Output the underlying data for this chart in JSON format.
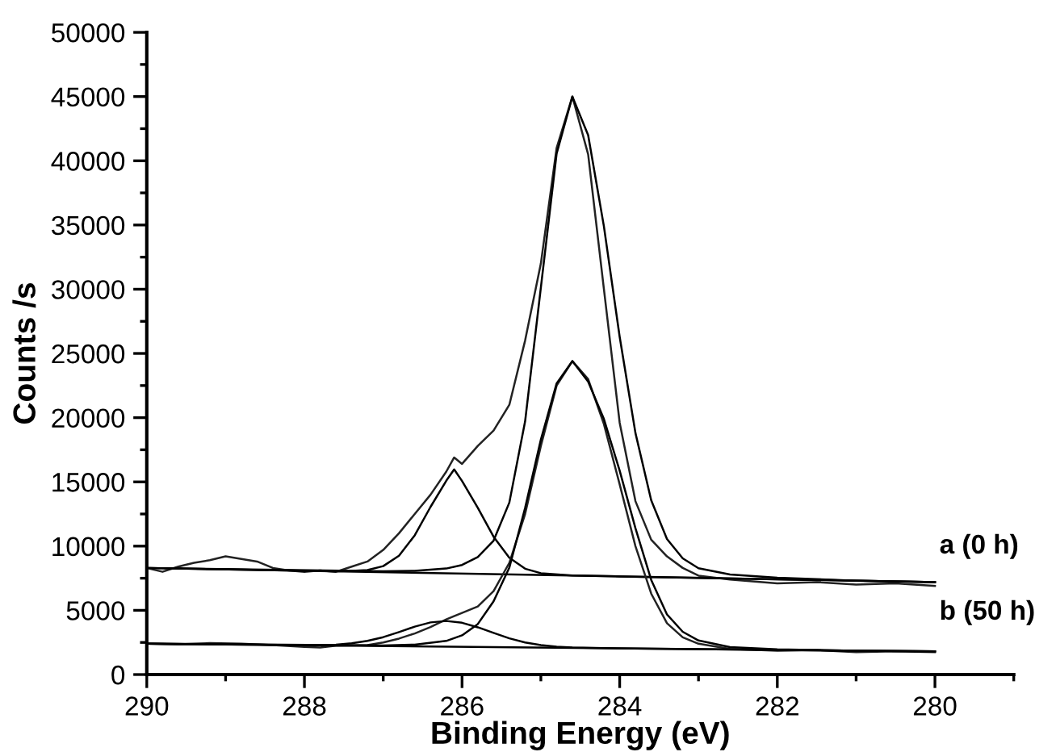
{
  "chart_data": {
    "type": "line",
    "xlabel": "Binding Energy (eV)",
    "ylabel": "Counts /s",
    "xlim": [
      290,
      279
    ],
    "ylim": [
      0,
      50000
    ],
    "xticks": [
      290,
      {
        "value": 289,
        "label": null
      },
      288,
      {
        "value": 287,
        "label": null
      },
      286,
      {
        "value": 285,
        "label": null
      },
      284,
      {
        "value": 283,
        "label": null
      },
      282,
      {
        "value": 281,
        "label": null
      },
      280,
      {
        "value": 279,
        "label": null
      }
    ],
    "yticks": [
      0,
      {
        "value": 2500,
        "label": null
      },
      5000,
      {
        "value": 7500,
        "label": null
      },
      10000,
      {
        "value": 12500,
        "label": null
      },
      15000,
      {
        "value": 17500,
        "label": null
      },
      20000,
      {
        "value": 22500,
        "label": null
      },
      25000,
      {
        "value": 27500,
        "label": null
      },
      30000,
      {
        "value": 32500,
        "label": null
      },
      35000,
      {
        "value": 37500,
        "label": null
      },
      40000,
      {
        "value": 42500,
        "label": null
      },
      45000,
      {
        "value": 47500,
        "label": null
      },
      50000
    ],
    "grid": false,
    "legend": false,
    "marker": "none",
    "line_style": "solid",
    "series": [
      {
        "name": "a (0 h)",
        "color": "#222222",
        "x": [
          290,
          289.8,
          289.6,
          289.4,
          289.2,
          289.0,
          288.8,
          288.6,
          288.4,
          288.2,
          288.0,
          287.8,
          287.6,
          287.4,
          287.2,
          287.0,
          286.8,
          286.6,
          286.4,
          286.2,
          286.1,
          286.0,
          285.8,
          285.6,
          285.4,
          285.2,
          285.0,
          284.8,
          284.6,
          284.4,
          284.2,
          284.0,
          283.8,
          283.6,
          283.4,
          283.2,
          283.0,
          282.6,
          282.0,
          281.5,
          281.0,
          280.5,
          280.0
        ],
        "values": [
          8300,
          8000,
          8400,
          8700,
          8900,
          9200,
          9000,
          8800,
          8300,
          8100,
          8000,
          8100,
          8000,
          8400,
          8800,
          9700,
          11000,
          12500,
          14000,
          15800,
          16900,
          16400,
          17800,
          19000,
          21000,
          26000,
          32000,
          41000,
          45000,
          40500,
          30000,
          19600,
          13500,
          10500,
          9200,
          8300,
          7700,
          7400,
          7100,
          7200,
          7000,
          7100,
          6900
        ]
      },
      {
        "color": "#000000",
        "x": [
          290,
          287.0,
          286.6,
          286.2,
          286.0,
          285.8,
          285.6,
          285.4,
          285.2,
          285.0,
          284.8,
          284.6,
          284.4,
          284.2,
          284.0,
          283.8,
          283.6,
          283.4,
          283.2,
          283.0,
          282.6,
          282.0,
          281.0,
          280.0
        ],
        "values": [
          8300,
          8045,
          8075,
          8255,
          8531,
          9144,
          10427,
          13389,
          19708,
          30130,
          40552,
          45000,
          42000,
          34891,
          26290,
          18808,
          13564,
          10558,
          9044,
          8276,
          7784,
          7532,
          7310,
          7200
        ]
      },
      {
        "color": "#000000",
        "x": [
          290,
          287.6,
          287.4,
          287.2,
          287.0,
          286.8,
          286.6,
          286.4,
          286.2,
          286.1,
          286.0,
          285.8,
          285.6,
          285.4,
          285.2,
          285.0,
          284.6,
          284.0,
          283.0,
          282.0,
          281.0,
          280.0
        ],
        "values": [
          8300,
          8040,
          8080,
          8130,
          8440,
          9250,
          10840,
          13050,
          15090,
          15970,
          15070,
          12980,
          10730,
          9090,
          8240,
          7890,
          7716,
          7640,
          7530,
          7420,
          7310,
          7200
        ]
      },
      {
        "color": "#000000",
        "x": [
          290,
          280
        ],
        "values": [
          8300,
          7200
        ]
      },
      {
        "name": "b (50 h)",
        "color": "#222222",
        "x": [
          290,
          289.6,
          289.2,
          288.8,
          288.4,
          288.0,
          287.8,
          287.6,
          287.2,
          287.0,
          286.8,
          286.6,
          286.4,
          286.2,
          286.0,
          285.8,
          285.6,
          285.4,
          285.2,
          285.0,
          284.8,
          284.6,
          284.4,
          284.2,
          284.0,
          283.8,
          283.6,
          283.4,
          283.2,
          283.0,
          282.6,
          282.0,
          281.5,
          281.0,
          280.5,
          280.0
        ],
        "values": [
          2400,
          2350,
          2450,
          2400,
          2300,
          2150,
          2100,
          2250,
          2300,
          2500,
          2800,
          3200,
          3700,
          4300,
          4800,
          5300,
          6500,
          8700,
          12500,
          17800,
          22500,
          24400,
          23000,
          19500,
          14800,
          10000,
          6300,
          4000,
          2900,
          2400,
          2000,
          1850,
          1900,
          1750,
          1800,
          1750
        ]
      },
      {
        "color": "#000000",
        "x": [
          290,
          287.0,
          286.6,
          286.2,
          286.0,
          285.8,
          285.6,
          285.4,
          285.2,
          285.0,
          284.8,
          284.6,
          284.4,
          284.2,
          284.0,
          283.8,
          283.6,
          283.4,
          283.2,
          283.0,
          282.6,
          282.0,
          281.0,
          280.0
        ],
        "values": [
          2400,
          2265,
          2330,
          2618,
          3052,
          3932,
          5704,
          8323,
          12972,
          18290,
          22668,
          24400,
          22803,
          19892,
          15866,
          11394,
          7368,
          4680,
          3330,
          2649,
          2134,
          1965,
          1860,
          1800
        ]
      },
      {
        "color": "#000000",
        "x": [
          290,
          288.0,
          287.8,
          287.6,
          287.4,
          287.2,
          287.0,
          286.8,
          286.6,
          286.4,
          286.2,
          286.0,
          285.8,
          285.6,
          285.4,
          285.2,
          285.0,
          284.8,
          284.6,
          284.2,
          283.6,
          282.0,
          280.0
        ],
        "values": [
          2400,
          2290,
          2300,
          2330,
          2430,
          2620,
          2910,
          3310,
          3730,
          4060,
          4170,
          4030,
          3680,
          3240,
          2820,
          2500,
          2290,
          2170,
          2110,
          2055,
          2016,
          1920,
          1800
        ]
      },
      {
        "color": "#000000",
        "x": [
          290,
          280
        ],
        "values": [
          2400,
          1800
        ]
      }
    ]
  }
}
